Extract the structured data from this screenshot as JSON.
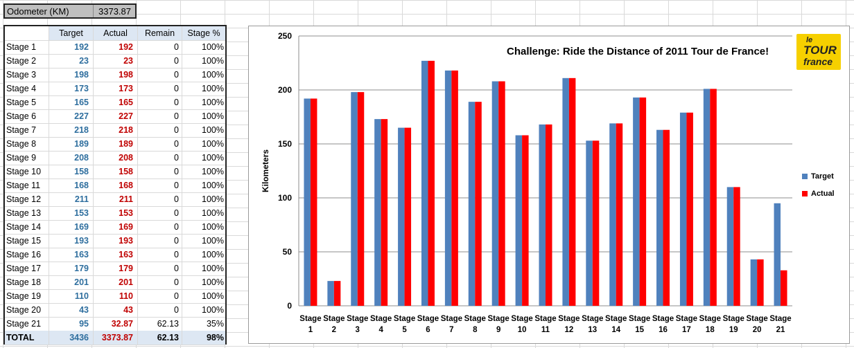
{
  "odometer": {
    "label": "Odometer (KM)",
    "value": "3373.87"
  },
  "table": {
    "headers": [
      "",
      "Target",
      "Actual",
      "Remain",
      "Stage %"
    ],
    "rows": [
      [
        "Stage 1",
        "192",
        "192",
        "0",
        "100%"
      ],
      [
        "Stage 2",
        "23",
        "23",
        "0",
        "100%"
      ],
      [
        "Stage 3",
        "198",
        "198",
        "0",
        "100%"
      ],
      [
        "Stage 4",
        "173",
        "173",
        "0",
        "100%"
      ],
      [
        "Stage 5",
        "165",
        "165",
        "0",
        "100%"
      ],
      [
        "Stage 6",
        "227",
        "227",
        "0",
        "100%"
      ],
      [
        "Stage 7",
        "218",
        "218",
        "0",
        "100%"
      ],
      [
        "Stage 8",
        "189",
        "189",
        "0",
        "100%"
      ],
      [
        "Stage 9",
        "208",
        "208",
        "0",
        "100%"
      ],
      [
        "Stage 10",
        "158",
        "158",
        "0",
        "100%"
      ],
      [
        "Stage 11",
        "168",
        "168",
        "0",
        "100%"
      ],
      [
        "Stage 12",
        "211",
        "211",
        "0",
        "100%"
      ],
      [
        "Stage 13",
        "153",
        "153",
        "0",
        "100%"
      ],
      [
        "Stage 14",
        "169",
        "169",
        "0",
        "100%"
      ],
      [
        "Stage 15",
        "193",
        "193",
        "0",
        "100%"
      ],
      [
        "Stage 16",
        "163",
        "163",
        "0",
        "100%"
      ],
      [
        "Stage 17",
        "179",
        "179",
        "0",
        "100%"
      ],
      [
        "Stage 18",
        "201",
        "201",
        "0",
        "100%"
      ],
      [
        "Stage 19",
        "110",
        "110",
        "0",
        "100%"
      ],
      [
        "Stage 20",
        "43",
        "43",
        "0",
        "100%"
      ],
      [
        "Stage 21",
        "95",
        "32.87",
        "62.13",
        "35%"
      ]
    ],
    "total": [
      "TOTAL",
      "3436",
      "3373.87",
      "62.13",
      "98%"
    ]
  },
  "logo": {
    "line1": "le",
    "line2": "TOUR",
    "line3": "france"
  },
  "colors": {
    "target": "#4f81bd",
    "actual": "#ff0000",
    "logo_bg": "#f6d000"
  },
  "chart_data": {
    "type": "bar",
    "title": "Challenge: Ride the Distance of 2011 Tour de France!",
    "xlabel": "",
    "ylabel": "Kilometers",
    "ylim": [
      0,
      250
    ],
    "yticks": [
      0,
      50,
      100,
      150,
      200,
      250
    ],
    "categories": [
      "Stage 1",
      "Stage 2",
      "Stage 3",
      "Stage 4",
      "Stage 5",
      "Stage 6",
      "Stage 7",
      "Stage 8",
      "Stage 9",
      "Stage 10",
      "Stage 11",
      "Stage 12",
      "Stage 13",
      "Stage 14",
      "Stage 15",
      "Stage 16",
      "Stage 17",
      "Stage 18",
      "Stage 19",
      "Stage 20",
      "Stage 21"
    ],
    "series": [
      {
        "name": "Target",
        "values": [
          192,
          23,
          198,
          173,
          165,
          227,
          218,
          189,
          208,
          158,
          168,
          211,
          153,
          169,
          193,
          163,
          179,
          201,
          110,
          43,
          95
        ]
      },
      {
        "name": "Actual",
        "values": [
          192,
          23,
          198,
          173,
          165,
          227,
          218,
          189,
          208,
          158,
          168,
          211,
          153,
          169,
          193,
          163,
          179,
          201,
          110,
          43,
          32.87
        ]
      }
    ],
    "grid": true,
    "legend": "right"
  }
}
